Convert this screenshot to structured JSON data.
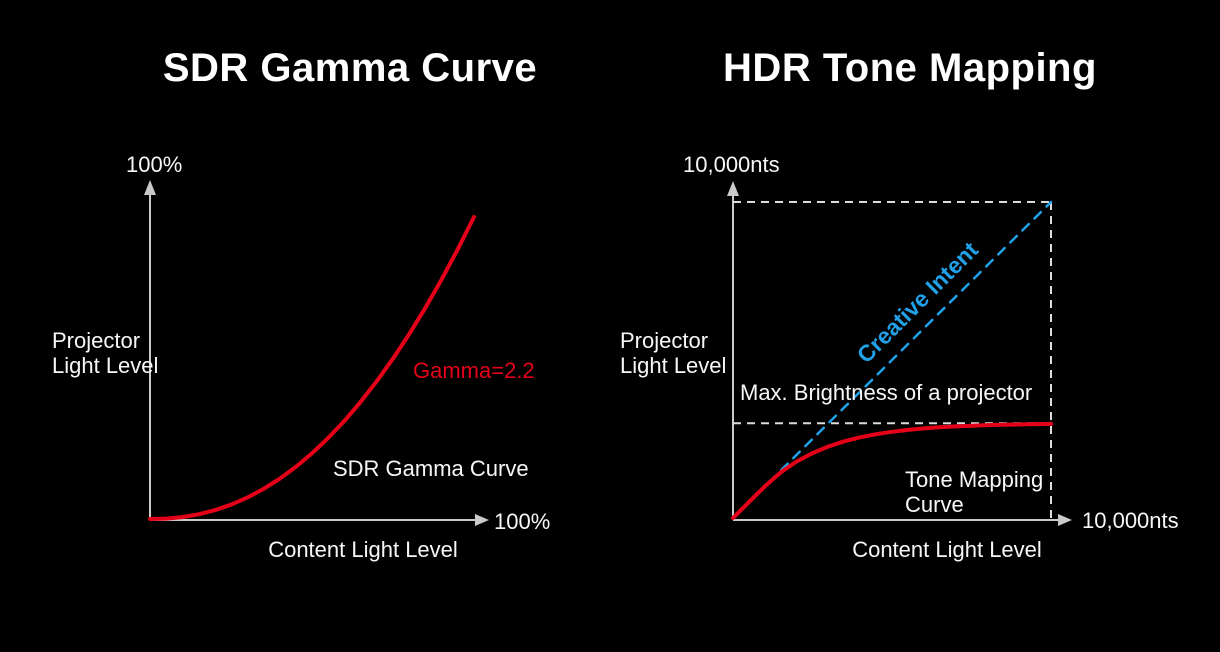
{
  "page": {
    "background_color": "#000000",
    "text_color": "#f7f7f7",
    "axis_color": "#c9c9c9",
    "guide_color": "#dcdcdc",
    "red_accent": "#e50019",
    "blue_accent": "#22a0e8"
  },
  "left_chart": {
    "title": "SDR Gamma Curve",
    "y_axis_top_label": "100%",
    "y_axis_label_line1": "Projector",
    "y_axis_label_line2": "Light Level",
    "x_axis_end_label": "100%",
    "x_axis_label": "Content Light Level",
    "curve_annotation": "Gamma=2.2",
    "curve_label": "SDR Gamma Curve"
  },
  "right_chart": {
    "title": "HDR Tone Mapping",
    "y_axis_top_label": "10,000nts",
    "y_axis_label_line1": "Projector",
    "y_axis_label_line2": "Light Level",
    "x_axis_end_label": "10,000nts",
    "x_axis_label": "Content Light Level",
    "creative_intent_label": "Creative Intent",
    "max_brightness_label": "Max. Brightness of a projector",
    "tone_curve_label_line1": "Tone Mapping",
    "tone_curve_label_line2": "Curve"
  },
  "chart_data": [
    {
      "type": "line",
      "title": "SDR Gamma Curve",
      "xlabel": "Content Light Level",
      "ylabel": "Projector Light Level",
      "x_range": [
        0,
        1
      ],
      "y_range": [
        0,
        1
      ],
      "x_max_label": "100%",
      "y_max_label": "100%",
      "grid": false,
      "gamma": 2.2,
      "series": [
        {
          "name": "SDR Gamma Curve",
          "annotation": "Gamma=2.2",
          "color": "#e50019",
          "style": "solid",
          "x": [
            0,
            0.05,
            0.1,
            0.15,
            0.2,
            0.25,
            0.3,
            0.35,
            0.4,
            0.45,
            0.5,
            0.55,
            0.6,
            0.65,
            0.7,
            0.75,
            0.8,
            0.85,
            0.9,
            0.95,
            1
          ],
          "y": [
            0,
            0.0014,
            0.0063,
            0.0154,
            0.029,
            0.0474,
            0.0707,
            0.0993,
            0.1332,
            0.1726,
            0.2176,
            0.2684,
            0.325,
            0.3876,
            0.4563,
            0.5311,
            0.6121,
            0.6994,
            0.7931,
            0.8933,
            1
          ]
        }
      ]
    },
    {
      "type": "line",
      "title": "HDR Tone Mapping",
      "xlabel": "Content Light Level",
      "ylabel": "Projector Light Level",
      "x_range": [
        0,
        1
      ],
      "y_range": [
        0,
        1
      ],
      "x_max_label": "10,000nts",
      "y_max_label": "10,000nts",
      "grid": false,
      "max_projector_brightness_fraction": 0.3,
      "guides": [
        {
          "axis": "y",
          "value": 1.0
        },
        {
          "axis": "x",
          "value": 1.0
        },
        {
          "axis": "y",
          "value": 0.3
        }
      ],
      "series": [
        {
          "name": "Creative Intent",
          "color": "#22a0e8",
          "style": "dashed",
          "x": [
            0,
            1
          ],
          "y": [
            0,
            1
          ]
        },
        {
          "name": "Tone Mapping Curve",
          "color": "#e50019",
          "style": "solid",
          "x": [
            0,
            0.05,
            0.1,
            0.15,
            0.2,
            0.25,
            0.3,
            0.35,
            0.4,
            0.45,
            0.5,
            0.55,
            0.6,
            0.65,
            0.7,
            0.75,
            0.8,
            0.85,
            0.9,
            0.95,
            1
          ],
          "y": [
            0,
            0.05,
            0.1,
            0.1442,
            0.1787,
            0.2055,
            0.2264,
            0.2427,
            0.2554,
            0.2652,
            0.2729,
            0.2789,
            0.2836,
            0.2872,
            0.29,
            0.2922,
            0.294,
            0.2953,
            0.2963,
            0.2971,
            0.2978
          ]
        }
      ]
    }
  ]
}
